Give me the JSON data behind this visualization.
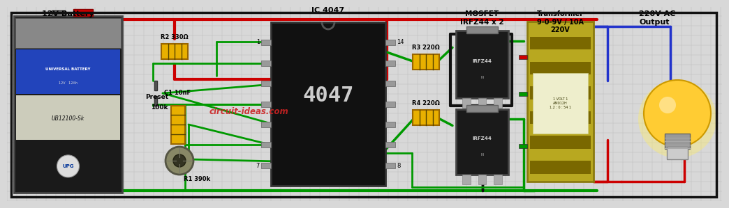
{
  "bg_color": "#d8d8d8",
  "border_color": "#111111",
  "grid_color": "#bbbbbb",
  "battery_label": "12V Battery",
  "ic_label": "IC 4047",
  "mosfet_label": "MOSFET\nIRFZ44 x 2",
  "transformer_label": "Transformer\n9-0-9V / 10A\n220V",
  "bulb_label": "220V AC\nOutput",
  "r2_label": "R2 330Ω",
  "c1_label": "C1 10nF",
  "preset_label": "Preset",
  "preset_val": "100k",
  "r1_label": "R1 390k",
  "r3_label": "R3 220Ω",
  "r4_label": "R4 220Ω",
  "resistor_color": "#e8b000",
  "wire_red": "#cc0000",
  "wire_green": "#009900",
  "wire_black": "#111111",
  "wire_blue": "#2233cc",
  "watermark": "circuit-ideas.com",
  "watermark_color": "#cc2222"
}
